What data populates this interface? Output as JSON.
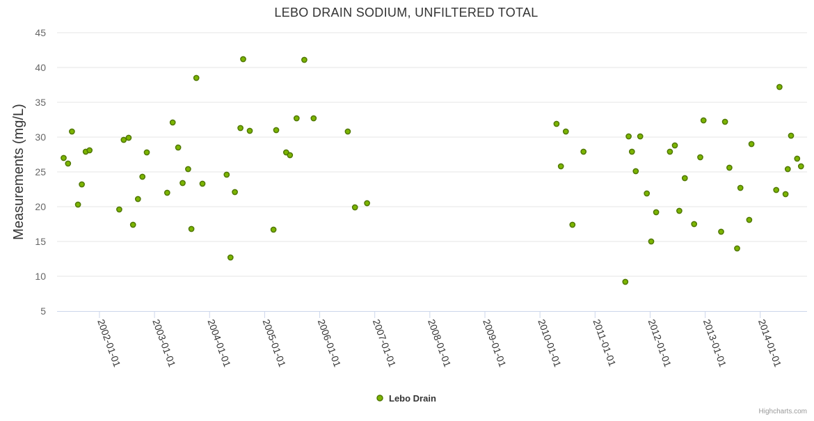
{
  "colors": {
    "marker_fill": "#7cb500",
    "marker_stroke": "#4f7700",
    "grid": "#e6e6e6",
    "axis": "#ccd6eb"
  },
  "credits": "Highcharts.com",
  "chart_data": {
    "type": "scatter",
    "title": "LEBO DRAIN SODIUM, UNFILTERED TOTAL",
    "xlabel": "",
    "ylabel": "Measurements (mg/L)",
    "ylim": [
      5,
      45
    ],
    "yticks": [
      5,
      10,
      15,
      20,
      25,
      30,
      35,
      40,
      45
    ],
    "xlim": [
      2001.23,
      2014.85
    ],
    "xtick_labels": [
      "2002-01-01",
      "2003-01-01",
      "2004-01-01",
      "2005-01-01",
      "2006-01-01",
      "2007-01-01",
      "2008-01-01",
      "2009-01-01",
      "2010-01-01",
      "2011-01-01",
      "2012-01-01",
      "2013-01-01",
      "2014-01-01"
    ],
    "xtick_values": [
      2002,
      2003,
      2004,
      2005,
      2006,
      2007,
      2008,
      2009,
      2010,
      2011,
      2012,
      2013,
      2014
    ],
    "grid": true,
    "legend": "bottom-center",
    "series": [
      {
        "name": "Lebo Drain",
        "x": [
          2001.35,
          2001.43,
          2001.5,
          2001.61,
          2001.68,
          2001.75,
          2001.82,
          2002.36,
          2002.44,
          2002.53,
          2002.61,
          2002.7,
          2002.78,
          2002.86,
          2003.23,
          2003.33,
          2003.43,
          2003.51,
          2003.61,
          2003.67,
          2003.76,
          2003.87,
          2004.31,
          2004.38,
          2004.46,
          2004.56,
          2004.61,
          2004.73,
          2005.16,
          2005.21,
          2005.39,
          2005.46,
          2005.58,
          2005.72,
          2005.89,
          2006.51,
          2006.64,
          2006.86,
          2010.3,
          2010.38,
          2010.47,
          2010.59,
          2010.79,
          2011.55,
          2011.61,
          2011.67,
          2011.74,
          2011.82,
          2011.94,
          2012.02,
          2012.11,
          2012.36,
          2012.45,
          2012.53,
          2012.63,
          2012.8,
          2012.91,
          2012.97,
          2013.29,
          2013.36,
          2013.44,
          2013.58,
          2013.64,
          2013.8,
          2013.84,
          2014.29,
          2014.35,
          2014.46,
          2014.5,
          2014.56,
          2014.67,
          2014.74
        ],
        "y": [
          27.0,
          26.2,
          30.8,
          20.3,
          23.2,
          27.9,
          28.1,
          19.6,
          29.6,
          29.9,
          17.4,
          21.1,
          24.3,
          27.8,
          22.0,
          32.1,
          28.5,
          23.4,
          25.4,
          16.8,
          38.5,
          23.3,
          24.6,
          12.7,
          22.1,
          31.3,
          41.2,
          30.9,
          16.7,
          31.0,
          27.8,
          27.4,
          32.7,
          41.1,
          32.7,
          30.8,
          19.9,
          20.5,
          31.9,
          25.8,
          30.8,
          17.4,
          27.9,
          9.2,
          30.1,
          27.9,
          25.1,
          30.1,
          21.9,
          15.0,
          19.2,
          27.9,
          28.8,
          19.4,
          24.1,
          17.5,
          27.1,
          32.4,
          16.4,
          32.2,
          25.6,
          14.0,
          22.7,
          18.1,
          29.0,
          22.4,
          37.2,
          21.8,
          25.4,
          30.2,
          26.9,
          25.8
        ]
      }
    ]
  }
}
